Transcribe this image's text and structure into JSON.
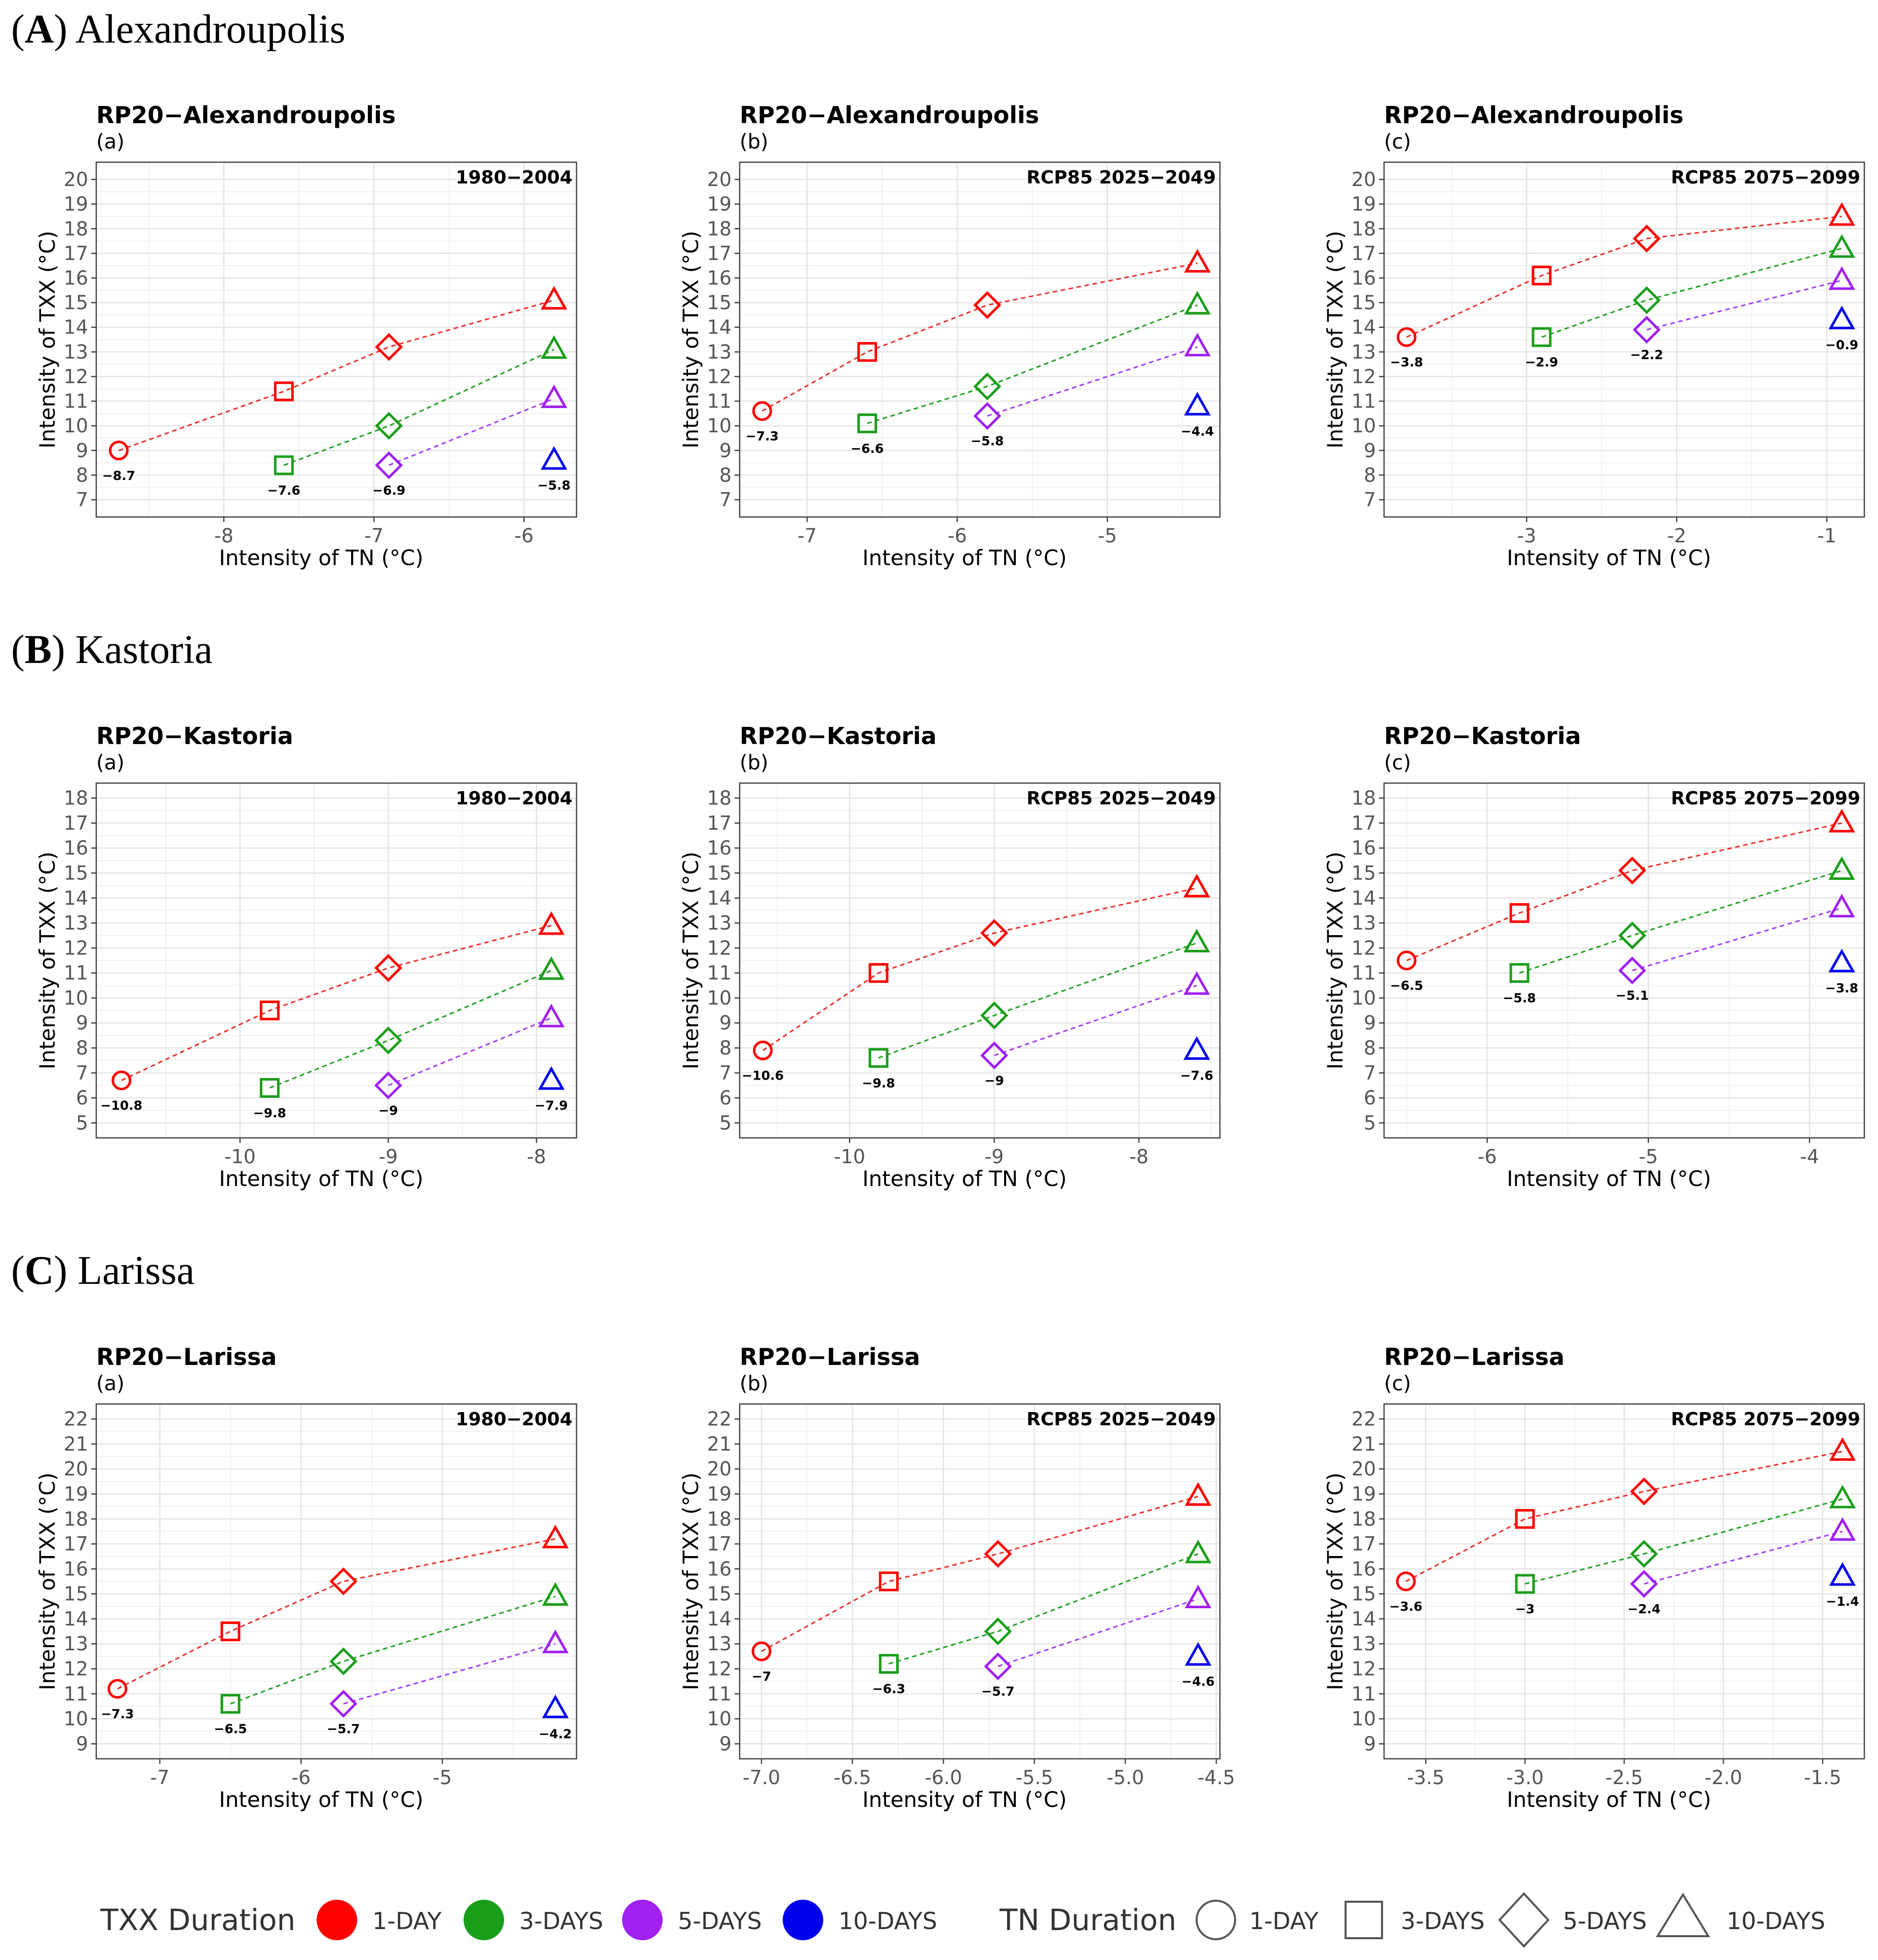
{
  "colors": {
    "1": "#ff0000",
    "3": "#1a9e1a",
    "5": "#a020f0",
    "10": "#0000ee",
    "connector_1": "#e83030",
    "connector_3": "#22a022",
    "connector_5": "#a040f0"
  },
  "legend": {
    "txx_title": "TXX Duration",
    "txx_items": [
      {
        "key": "1",
        "label": "1-DAY"
      },
      {
        "key": "3",
        "label": "3-DAYS"
      },
      {
        "key": "5",
        "label": "5-DAYS"
      },
      {
        "key": "10",
        "label": "10-DAYS"
      }
    ],
    "tn_title": "TN Duration",
    "tn_items": [
      {
        "shape": "circle",
        "label": "1-DAY"
      },
      {
        "shape": "square",
        "label": "3-DAYS"
      },
      {
        "shape": "diamond",
        "label": "5-DAYS"
      },
      {
        "shape": "triangle",
        "label": "10-DAYS"
      }
    ]
  },
  "sections": [
    {
      "letter": "A",
      "name": "Alexandroupolis"
    },
    {
      "letter": "B",
      "name": "Kastoria"
    },
    {
      "letter": "C",
      "name": "Larissa"
    }
  ],
  "chart_data": [
    {
      "type": "scatter",
      "title": "RP20−Alexandroupolis",
      "subtitle": "(a)",
      "period": "1980−2004",
      "xlabel": "Intensity of TN (°C)",
      "ylabel": "Intensity of TXX (°C)",
      "xlim": [
        -8.85,
        -5.65
      ],
      "ylim": [
        6.3,
        20.7
      ],
      "xticks": [
        -8,
        -7,
        -6
      ],
      "xtick_labels": [
        "-8",
        "-7",
        "-6"
      ],
      "yticks": [
        7,
        8,
        9,
        10,
        11,
        12,
        13,
        14,
        15,
        16,
        17,
        18,
        19,
        20
      ],
      "tn_durations": [
        "1",
        "3",
        "5",
        "10"
      ],
      "tn_values": [
        -8.7,
        -7.6,
        -6.9,
        -5.8
      ],
      "tn_value_labels": [
        "−8.7",
        "−7.6",
        "−6.9",
        "−5.8"
      ],
      "series": [
        {
          "txx_duration": "1",
          "values": [
            9.0,
            11.4,
            13.2,
            15.1
          ]
        },
        {
          "txx_duration": "3",
          "values": [
            null,
            8.4,
            10.0,
            13.1
          ]
        },
        {
          "txx_duration": "5",
          "values": [
            null,
            null,
            8.4,
            11.1
          ]
        },
        {
          "txx_duration": "10",
          "values": [
            null,
            null,
            null,
            8.6
          ]
        }
      ]
    },
    {
      "type": "scatter",
      "title": "RP20−Alexandroupolis",
      "subtitle": "(b)",
      "period": "RCP85 2025−2049",
      "xlabel": "Intensity of TN (°C)",
      "ylabel": "Intensity of TXX (°C)",
      "xlim": [
        -7.45,
        -4.25
      ],
      "ylim": [
        6.3,
        20.7
      ],
      "xticks": [
        -7,
        -6,
        -5
      ],
      "xtick_labels": [
        "-7",
        "-6",
        "-5"
      ],
      "yticks": [
        7,
        8,
        9,
        10,
        11,
        12,
        13,
        14,
        15,
        16,
        17,
        18,
        19,
        20
      ],
      "tn_durations": [
        "1",
        "3",
        "5",
        "10"
      ],
      "tn_values": [
        -7.3,
        -6.6,
        -5.8,
        -4.4
      ],
      "tn_value_labels": [
        "−7.3",
        "−6.6",
        "−5.8",
        "−4.4"
      ],
      "series": [
        {
          "txx_duration": "1",
          "values": [
            10.6,
            13.0,
            14.9,
            16.6
          ]
        },
        {
          "txx_duration": "3",
          "values": [
            null,
            10.1,
            11.6,
            14.9
          ]
        },
        {
          "txx_duration": "5",
          "values": [
            null,
            null,
            10.4,
            13.2
          ]
        },
        {
          "txx_duration": "10",
          "values": [
            null,
            null,
            null,
            10.8
          ]
        }
      ]
    },
    {
      "type": "scatter",
      "title": "RP20−Alexandroupolis",
      "subtitle": "(c)",
      "period": "RCP85 2075−2099",
      "xlabel": "Intensity of TN (°C)",
      "ylabel": "Intensity of TXX (°C)",
      "xlim": [
        -3.95,
        -0.75
      ],
      "ylim": [
        6.3,
        20.7
      ],
      "xticks": [
        -3,
        -2,
        -1
      ],
      "xtick_labels": [
        "-3",
        "-2",
        "-1"
      ],
      "yticks": [
        7,
        8,
        9,
        10,
        11,
        12,
        13,
        14,
        15,
        16,
        17,
        18,
        19,
        20
      ],
      "tn_durations": [
        "1",
        "3",
        "5",
        "10"
      ],
      "tn_values": [
        -3.8,
        -2.9,
        -2.2,
        -0.9
      ],
      "tn_value_labels": [
        "−3.8",
        "−2.9",
        "−2.2",
        "−0.9"
      ],
      "series": [
        {
          "txx_duration": "1",
          "values": [
            13.6,
            16.1,
            17.6,
            18.5
          ]
        },
        {
          "txx_duration": "3",
          "values": [
            null,
            13.6,
            15.1,
            17.2
          ]
        },
        {
          "txx_duration": "5",
          "values": [
            null,
            null,
            13.9,
            15.9
          ]
        },
        {
          "txx_duration": "10",
          "values": [
            null,
            null,
            null,
            14.3
          ]
        }
      ]
    },
    {
      "type": "scatter",
      "title": "RP20−Kastoria",
      "subtitle": "(a)",
      "period": "1980−2004",
      "xlabel": "Intensity of TN (°C)",
      "ylabel": "Intensity of TXX (°C)",
      "xlim": [
        -10.97,
        -7.73
      ],
      "ylim": [
        4.4,
        18.6
      ],
      "xticks": [
        -10,
        -9,
        -8
      ],
      "xtick_labels": [
        "-10",
        "-9",
        "-8"
      ],
      "yticks": [
        5,
        6,
        7,
        8,
        9,
        10,
        11,
        12,
        13,
        14,
        15,
        16,
        17,
        18
      ],
      "tn_durations": [
        "1",
        "3",
        "5",
        "10"
      ],
      "tn_values": [
        -10.8,
        -9.8,
        -9.0,
        -7.9
      ],
      "tn_value_labels": [
        "−10.8",
        "−9.8",
        "−9",
        "−7.9"
      ],
      "series": [
        {
          "txx_duration": "1",
          "values": [
            6.7,
            9.5,
            11.2,
            12.9
          ]
        },
        {
          "txx_duration": "3",
          "values": [
            null,
            6.4,
            8.3,
            11.1
          ]
        },
        {
          "txx_duration": "5",
          "values": [
            null,
            null,
            6.5,
            9.2
          ]
        },
        {
          "txx_duration": "10",
          "values": [
            null,
            null,
            null,
            6.7
          ]
        }
      ]
    },
    {
      "type": "scatter",
      "title": "RP20−Kastoria",
      "subtitle": "(b)",
      "period": "RCP85 2025−2049",
      "xlabel": "Intensity of TN (°C)",
      "ylabel": "Intensity of TXX (°C)",
      "xlim": [
        -10.76,
        -7.44
      ],
      "ylim": [
        4.4,
        18.6
      ],
      "xticks": [
        -10,
        -9,
        -8
      ],
      "xtick_labels": [
        "-10",
        "-9",
        "-8"
      ],
      "yticks": [
        5,
        6,
        7,
        8,
        9,
        10,
        11,
        12,
        13,
        14,
        15,
        16,
        17,
        18
      ],
      "tn_durations": [
        "1",
        "3",
        "5",
        "10"
      ],
      "tn_values": [
        -10.6,
        -9.8,
        -9.0,
        -7.6
      ],
      "tn_value_labels": [
        "−10.6",
        "−9.8",
        "−9",
        "−7.6"
      ],
      "series": [
        {
          "txx_duration": "1",
          "values": [
            7.9,
            11.0,
            12.6,
            14.4
          ]
        },
        {
          "txx_duration": "3",
          "values": [
            null,
            7.6,
            9.3,
            12.2
          ]
        },
        {
          "txx_duration": "5",
          "values": [
            null,
            null,
            7.7,
            10.5
          ]
        },
        {
          "txx_duration": "10",
          "values": [
            null,
            null,
            null,
            7.9
          ]
        }
      ]
    },
    {
      "type": "scatter",
      "title": "RP20−Kastoria",
      "subtitle": "(c)",
      "period": "RCP85 2075−2099",
      "xlabel": "Intensity of TN (°C)",
      "ylabel": "Intensity of TXX (°C)",
      "xlim": [
        -6.64,
        -3.66
      ],
      "ylim": [
        4.4,
        18.6
      ],
      "xticks": [
        -6,
        -5,
        -4
      ],
      "xtick_labels": [
        "-6",
        "-5",
        "-4"
      ],
      "yticks": [
        5,
        6,
        7,
        8,
        9,
        10,
        11,
        12,
        13,
        14,
        15,
        16,
        17,
        18
      ],
      "tn_durations": [
        "1",
        "3",
        "5",
        "10"
      ],
      "tn_values": [
        -6.5,
        -5.8,
        -5.1,
        -3.8
      ],
      "tn_value_labels": [
        "−6.5",
        "−5.8",
        "−5.1",
        "−3.8"
      ],
      "series": [
        {
          "txx_duration": "1",
          "values": [
            11.5,
            13.4,
            15.1,
            17.0
          ]
        },
        {
          "txx_duration": "3",
          "values": [
            null,
            11.0,
            12.5,
            15.1
          ]
        },
        {
          "txx_duration": "5",
          "values": [
            null,
            null,
            11.1,
            13.6
          ]
        },
        {
          "txx_duration": "10",
          "values": [
            null,
            null,
            null,
            11.4
          ]
        }
      ]
    },
    {
      "type": "scatter",
      "title": "RP20−Larissa",
      "subtitle": "(a)",
      "period": "1980−2004",
      "xlabel": "Intensity of TN (°C)",
      "ylabel": "Intensity of TXX (°C)",
      "xlim": [
        -7.45,
        -4.05
      ],
      "ylim": [
        8.4,
        22.6
      ],
      "xticks": [
        -7,
        -6,
        -5
      ],
      "xtick_labels": [
        "-7",
        "-6",
        "-5"
      ],
      "yticks": [
        9,
        10,
        11,
        12,
        13,
        14,
        15,
        16,
        17,
        18,
        19,
        20,
        21,
        22
      ],
      "tn_durations": [
        "1",
        "3",
        "5",
        "10"
      ],
      "tn_values": [
        -7.3,
        -6.5,
        -5.7,
        -4.2
      ],
      "tn_value_labels": [
        "−7.3",
        "−6.5",
        "−5.7",
        "−4.2"
      ],
      "series": [
        {
          "txx_duration": "1",
          "values": [
            11.2,
            13.5,
            15.5,
            17.2
          ]
        },
        {
          "txx_duration": "3",
          "values": [
            null,
            10.6,
            12.3,
            14.9
          ]
        },
        {
          "txx_duration": "5",
          "values": [
            null,
            null,
            10.6,
            13.0
          ]
        },
        {
          "txx_duration": "10",
          "values": [
            null,
            null,
            null,
            10.4
          ]
        }
      ]
    },
    {
      "type": "scatter",
      "title": "RP20−Larissa",
      "subtitle": "(b)",
      "period": "RCP85 2025−2049",
      "xlabel": "Intensity of TN (°C)",
      "ylabel": "Intensity of TXX (°C)",
      "xlim": [
        -7.12,
        -4.48
      ],
      "ylim": [
        8.4,
        22.6
      ],
      "xticks": [
        -7.0,
        -6.5,
        -6.0,
        -5.5,
        -5.0,
        -4.5
      ],
      "xtick_labels": [
        "-7.0",
        "-6.5",
        "-6.0",
        "-5.5",
        "-5.0",
        "-4.5"
      ],
      "yticks": [
        9,
        10,
        11,
        12,
        13,
        14,
        15,
        16,
        17,
        18,
        19,
        20,
        21,
        22
      ],
      "tn_durations": [
        "1",
        "3",
        "5",
        "10"
      ],
      "tn_values": [
        -7.0,
        -6.3,
        -5.7,
        -4.6
      ],
      "tn_value_labels": [
        "−7",
        "−6.3",
        "−5.7",
        "−4.6"
      ],
      "series": [
        {
          "txx_duration": "1",
          "values": [
            12.7,
            15.5,
            16.6,
            18.9
          ]
        },
        {
          "txx_duration": "3",
          "values": [
            null,
            12.2,
            13.5,
            16.6
          ]
        },
        {
          "txx_duration": "5",
          "values": [
            null,
            null,
            12.1,
            14.8
          ]
        },
        {
          "txx_duration": "10",
          "values": [
            null,
            null,
            null,
            12.5
          ]
        }
      ]
    },
    {
      "type": "scatter",
      "title": "RP20−Larissa",
      "subtitle": "(c)",
      "period": "RCP85 2075−2099",
      "xlabel": "Intensity of TN (°C)",
      "ylabel": "Intensity of TXX (°C)",
      "xlim": [
        -3.71,
        -1.29
      ],
      "ylim": [
        8.4,
        22.6
      ],
      "xticks": [
        -3.5,
        -3.0,
        -2.5,
        -2.0,
        -1.5
      ],
      "xtick_labels": [
        "-3.5",
        "-3.0",
        "-2.5",
        "-2.0",
        "-1.5"
      ],
      "yticks": [
        9,
        10,
        11,
        12,
        13,
        14,
        15,
        16,
        17,
        18,
        19,
        20,
        21,
        22
      ],
      "tn_durations": [
        "1",
        "3",
        "5",
        "10"
      ],
      "tn_values": [
        -3.6,
        -3.0,
        -2.4,
        -1.4
      ],
      "tn_value_labels": [
        "−3.6",
        "−3",
        "−2.4",
        "−1.4"
      ],
      "series": [
        {
          "txx_duration": "1",
          "values": [
            15.5,
            18.0,
            19.1,
            20.7
          ]
        },
        {
          "txx_duration": "3",
          "values": [
            null,
            15.4,
            16.6,
            18.8
          ]
        },
        {
          "txx_duration": "5",
          "values": [
            null,
            null,
            15.4,
            17.5
          ]
        },
        {
          "txx_duration": "10",
          "values": [
            null,
            null,
            null,
            15.7
          ]
        }
      ]
    }
  ]
}
